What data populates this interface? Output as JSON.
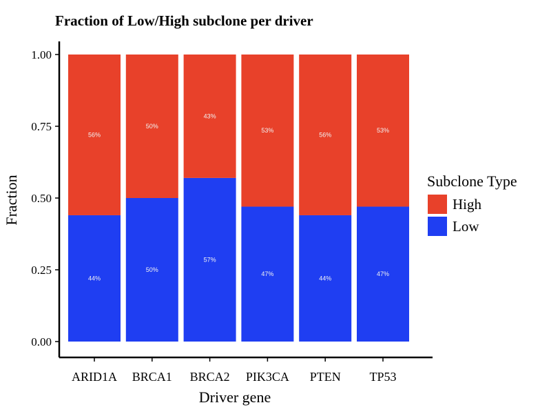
{
  "chart_data": {
    "type": "bar",
    "stacked": true,
    "title": "Fraction of Low/High subclone per driver",
    "xlabel": "Driver gene",
    "ylabel": "Fraction",
    "ylim": [
      0,
      1.0
    ],
    "yticks": [
      "0.00",
      "0.25",
      "0.50",
      "0.75",
      "1.00"
    ],
    "categories": [
      "ARID1A",
      "BRCA1",
      "BRCA2",
      "PIK3CA",
      "PTEN",
      "TP53"
    ],
    "series": [
      {
        "name": "Low",
        "color": "#1f3ef2",
        "values": [
          0.44,
          0.5,
          0.57,
          0.47,
          0.44,
          0.47
        ],
        "labels": [
          "44%",
          "50%",
          "57%",
          "47%",
          "44%",
          "47%"
        ]
      },
      {
        "name": "High",
        "color": "#e8412a",
        "values": [
          0.56,
          0.5,
          0.43,
          0.53,
          0.56,
          0.53
        ],
        "labels": [
          "56%",
          "50%",
          "43%",
          "53%",
          "56%",
          "53%"
        ]
      }
    ],
    "legend": {
      "title": "Subclone Type",
      "position": "right",
      "order": [
        "High",
        "Low"
      ]
    },
    "grid": false
  }
}
